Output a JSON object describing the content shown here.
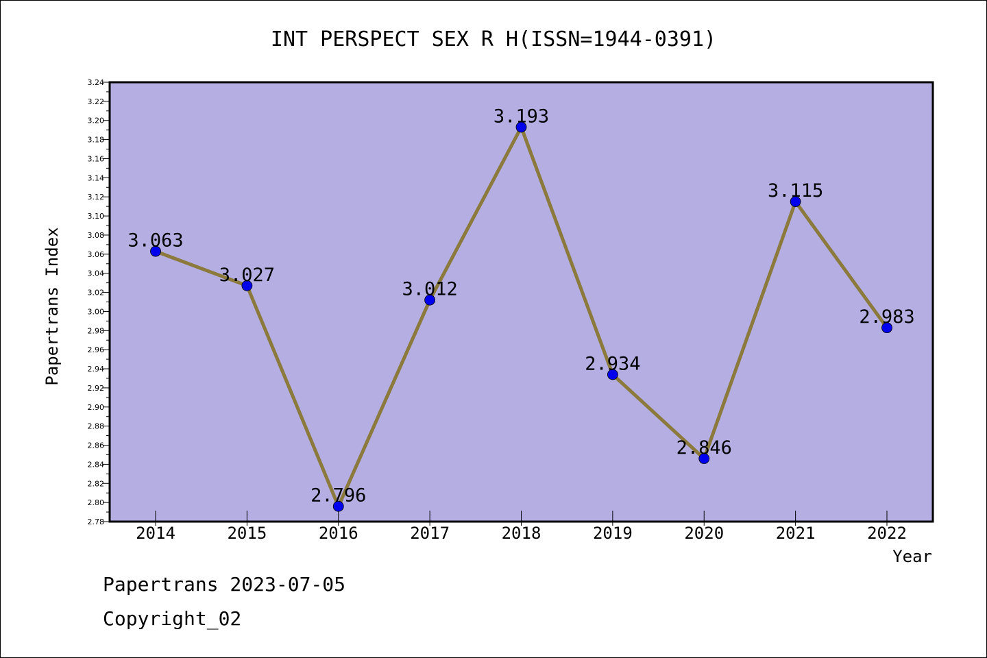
{
  "chart_data": {
    "type": "line",
    "title": "INT PERSPECT SEX R H(ISSN=1944-0391)",
    "xlabel": "Year",
    "ylabel": "Papertrans Index",
    "categories": [
      "2014",
      "2015",
      "2016",
      "2017",
      "2018",
      "2019",
      "2020",
      "2021",
      "2022"
    ],
    "values": [
      3.063,
      3.027,
      2.796,
      3.012,
      3.193,
      2.934,
      2.846,
      3.115,
      2.983
    ],
    "data_labels": [
      "3.063",
      "3.027",
      "2.796",
      "3.012",
      "3.193",
      "2.934",
      "2.846",
      "3.115",
      "2.983"
    ],
    "ylim": [
      2.78,
      3.24
    ],
    "yticks": [
      "2.78",
      "2.80",
      "2.82",
      "2.84",
      "2.86",
      "2.88",
      "2.90",
      "2.92",
      "2.94",
      "2.96",
      "2.98",
      "3.00",
      "3.02",
      "3.04",
      "3.06",
      "3.08",
      "3.10",
      "3.12",
      "3.14",
      "3.16",
      "3.18",
      "3.20",
      "3.22",
      "3.24"
    ],
    "grid": false,
    "colors": {
      "plot_background": "#b4aee2",
      "line": "#8b7a3c",
      "marker": "#0000ee"
    }
  },
  "footer": {
    "line1": "Papertrans 2023-07-05",
    "line2": "Copyright_02"
  }
}
